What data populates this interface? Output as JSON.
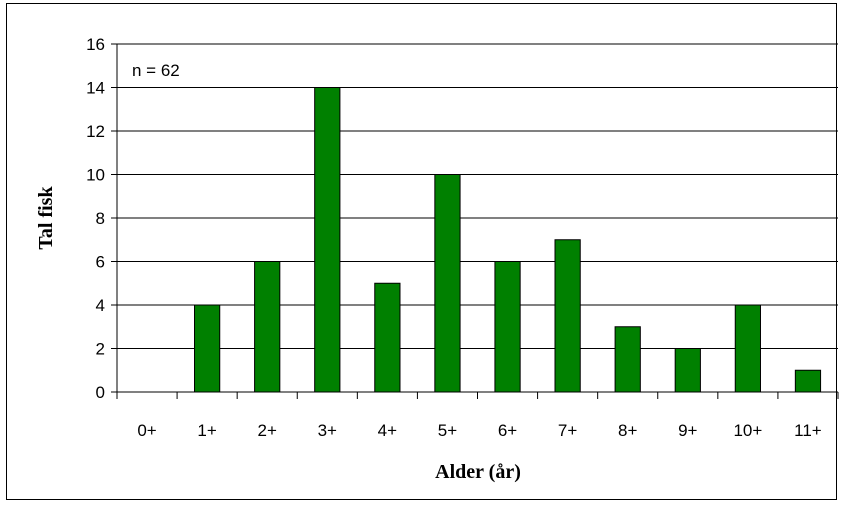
{
  "chart_data": {
    "type": "bar",
    "categories": [
      "0+",
      "1+",
      "2+",
      "3+",
      "4+",
      "5+",
      "6+",
      "7+",
      "8+",
      "9+",
      "10+",
      "11+"
    ],
    "values": [
      0,
      4,
      6,
      14,
      5,
      10,
      6,
      7,
      3,
      2,
      4,
      1
    ],
    "xlabel": "Alder (år)",
    "ylabel": "Tal fisk",
    "ylim": [
      0,
      16
    ],
    "yticks": [
      0,
      2,
      4,
      6,
      8,
      10,
      12,
      14,
      16
    ],
    "annotation": "n = 62",
    "grid": true,
    "legend": "none",
    "bar_color": "#008000"
  }
}
